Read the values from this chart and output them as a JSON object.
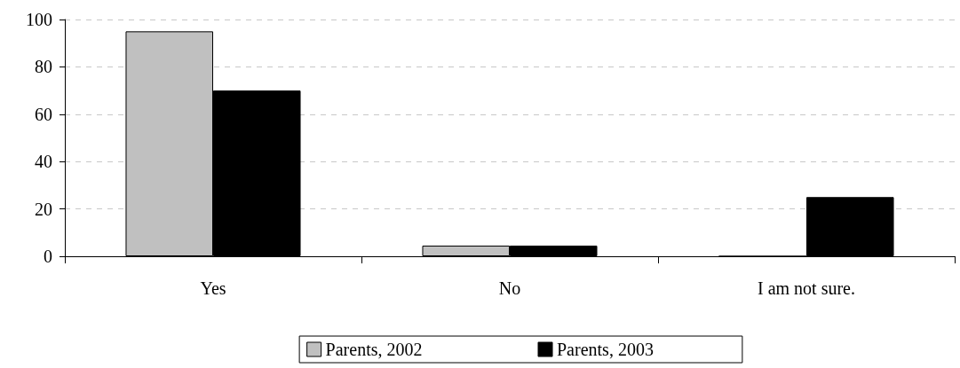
{
  "chart_data": {
    "type": "bar",
    "categories": [
      "Yes",
      "No",
      "I am not sure."
    ],
    "series": [
      {
        "name": "Parents, 2002",
        "color": "#c0c0c0",
        "values": [
          95,
          4.5,
          0
        ]
      },
      {
        "name": "Parents, 2003",
        "color": "#000000",
        "values": [
          70,
          4.5,
          25
        ]
      }
    ],
    "ylim": [
      0,
      100
    ],
    "yticks": [
      0,
      20,
      40,
      60,
      80,
      100
    ],
    "grid": "y",
    "legend": "bottom"
  }
}
